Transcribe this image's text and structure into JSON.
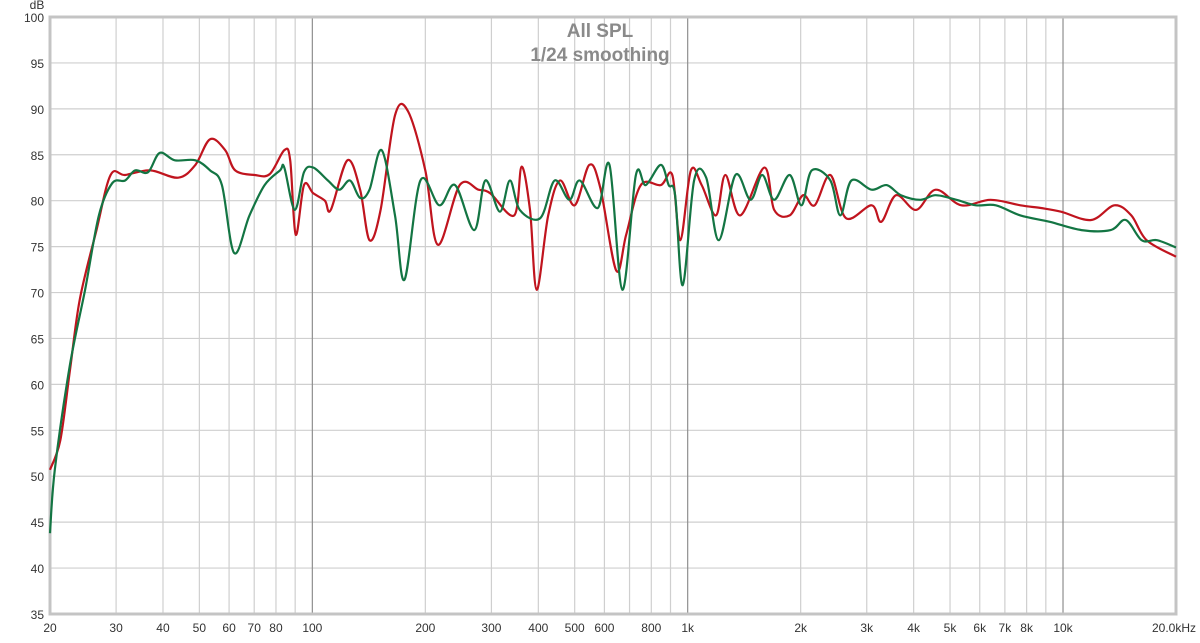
{
  "chart_data": {
    "type": "line",
    "title": "All SPL",
    "subtitle": "1/24 smoothing",
    "ylabel": "dB",
    "xunit": "kHz",
    "xscale": "log",
    "xlim": [
      20,
      20000
    ],
    "ylim": [
      35,
      100
    ],
    "grid": true,
    "yticks": [
      35,
      40,
      45,
      50,
      55,
      60,
      65,
      70,
      75,
      80,
      85,
      90,
      95,
      100
    ],
    "xtick_labels": [
      {
        "v": 20,
        "t": "20"
      },
      {
        "v": 30,
        "t": "30"
      },
      {
        "v": 40,
        "t": "40"
      },
      {
        "v": 50,
        "t": "50"
      },
      {
        "v": 60,
        "t": "60"
      },
      {
        "v": 70,
        "t": "70"
      },
      {
        "v": 80,
        "t": "80"
      },
      {
        "v": 100,
        "t": "100"
      },
      {
        "v": 200,
        "t": "200"
      },
      {
        "v": 300,
        "t": "300"
      },
      {
        "v": 400,
        "t": "400"
      },
      {
        "v": 500,
        "t": "500"
      },
      {
        "v": 600,
        "t": "600"
      },
      {
        "v": 800,
        "t": "800"
      },
      {
        "v": 1000,
        "t": "1k"
      },
      {
        "v": 2000,
        "t": "2k"
      },
      {
        "v": 3000,
        "t": "3k"
      },
      {
        "v": 4000,
        "t": "4k"
      },
      {
        "v": 5000,
        "t": "5k"
      },
      {
        "v": 6000,
        "t": "6k"
      },
      {
        "v": 7000,
        "t": "7k"
      },
      {
        "v": 8000,
        "t": "8k"
      },
      {
        "v": 10000,
        "t": "10k"
      },
      {
        "v": 20000,
        "t": "20.0kHz"
      }
    ],
    "series": [
      {
        "color": "#c0141e",
        "points": [
          [
            20,
            50.7
          ],
          [
            21.3,
            53.9
          ],
          [
            22.6,
            61.5
          ],
          [
            24,
            69.2
          ],
          [
            26.6,
            76.8
          ],
          [
            29,
            82.8
          ],
          [
            31.7,
            82.8
          ],
          [
            37,
            83.3
          ],
          [
            43.9,
            82.5
          ],
          [
            48.8,
            83.9
          ],
          [
            53.4,
            86.7
          ],
          [
            58.6,
            85.5
          ],
          [
            62.3,
            83.3
          ],
          [
            70.2,
            82.8
          ],
          [
            77,
            82.9
          ],
          [
            84.2,
            85.5
          ],
          [
            87.3,
            84.4
          ],
          [
            90.3,
            76.3
          ],
          [
            95,
            81.7
          ],
          [
            100.6,
            80.8
          ],
          [
            108,
            80
          ],
          [
            112,
            79
          ],
          [
            124,
            84.4
          ],
          [
            134,
            81.2
          ],
          [
            142,
            75.7
          ],
          [
            152,
            79
          ],
          [
            166,
            89.3
          ],
          [
            180,
            89.7
          ],
          [
            200,
            83.3
          ],
          [
            216,
            75.2
          ],
          [
            247,
            81.7
          ],
          [
            277,
            81.2
          ],
          [
            298,
            80.8
          ],
          [
            345,
            78.4
          ],
          [
            361,
            83.7
          ],
          [
            380,
            79
          ],
          [
            396,
            70.3
          ],
          [
            425,
            78.4
          ],
          [
            457,
            82.2
          ],
          [
            500,
            79.5
          ],
          [
            547,
            83.9
          ],
          [
            585,
            81.4
          ],
          [
            645,
            72.4
          ],
          [
            686,
            76.3
          ],
          [
            750,
            81.7
          ],
          [
            848,
            81.7
          ],
          [
            910,
            82.8
          ],
          [
            956,
            75.7
          ],
          [
            1020,
            83.3
          ],
          [
            1090,
            81.7
          ],
          [
            1190,
            78.4
          ],
          [
            1260,
            82.8
          ],
          [
            1380,
            78.4
          ],
          [
            1600,
            83.6
          ],
          [
            1700,
            79
          ],
          [
            1870,
            78.4
          ],
          [
            2030,
            80.6
          ],
          [
            2180,
            79.5
          ],
          [
            2400,
            82.8
          ],
          [
            2640,
            78.1
          ],
          [
            3090,
            79.5
          ],
          [
            3280,
            77.7
          ],
          [
            3590,
            80.6
          ],
          [
            4060,
            79
          ],
          [
            4580,
            81.2
          ],
          [
            5360,
            79.5
          ],
          [
            6410,
            80.1
          ],
          [
            7700,
            79.5
          ],
          [
            8730,
            79.2
          ],
          [
            9880,
            78.8
          ],
          [
            11890,
            77.9
          ],
          [
            13700,
            79.5
          ],
          [
            15200,
            78.4
          ],
          [
            16700,
            75.7
          ],
          [
            20000,
            73.9
          ]
        ]
      },
      {
        "color": "#137543",
        "points": [
          [
            20,
            43.8
          ],
          [
            20.6,
            50.7
          ],
          [
            22.6,
            62.1
          ],
          [
            24.8,
            70.3
          ],
          [
            27,
            78.4
          ],
          [
            29.3,
            81.9
          ],
          [
            31.7,
            82.2
          ],
          [
            33.7,
            83.3
          ],
          [
            36.5,
            83.1
          ],
          [
            39.2,
            85.2
          ],
          [
            43,
            84.4
          ],
          [
            48.8,
            84.4
          ],
          [
            53.4,
            83.3
          ],
          [
            57.4,
            81.7
          ],
          [
            61.9,
            74.3
          ],
          [
            68,
            78.4
          ],
          [
            74.6,
            81.7
          ],
          [
            82,
            83.3
          ],
          [
            84.2,
            83.6
          ],
          [
            89.8,
            79
          ],
          [
            95,
            83.1
          ],
          [
            100.6,
            83.6
          ],
          [
            110,
            82.2
          ],
          [
            118,
            81.2
          ],
          [
            126,
            82.2
          ],
          [
            134,
            80.3
          ],
          [
            142,
            81.2
          ],
          [
            153,
            85.5
          ],
          [
            166,
            78.4
          ],
          [
            176,
            71.4
          ],
          [
            194,
            82.2
          ],
          [
            218,
            79.5
          ],
          [
            240,
            81.7
          ],
          [
            270,
            76.8
          ],
          [
            289,
            82.2
          ],
          [
            316,
            78.8
          ],
          [
            336,
            82.2
          ],
          [
            357,
            79
          ],
          [
            405,
            78.1
          ],
          [
            442,
            82.2
          ],
          [
            484,
            80.1
          ],
          [
            516,
            82.2
          ],
          [
            576,
            79.2
          ],
          [
            619,
            83.9
          ],
          [
            670,
            70.3
          ],
          [
            728,
            82.8
          ],
          [
            773,
            81.7
          ],
          [
            848,
            83.9
          ],
          [
            890,
            81.7
          ],
          [
            926,
            80.6
          ],
          [
            970,
            70.8
          ],
          [
            1040,
            82.2
          ],
          [
            1120,
            82.5
          ],
          [
            1210,
            75.7
          ],
          [
            1340,
            82.8
          ],
          [
            1470,
            80.1
          ],
          [
            1580,
            82.8
          ],
          [
            1700,
            80.1
          ],
          [
            1870,
            82.8
          ],
          [
            2010,
            79.5
          ],
          [
            2140,
            83.3
          ],
          [
            2400,
            82.2
          ],
          [
            2550,
            78.4
          ],
          [
            2730,
            82.2
          ],
          [
            3090,
            81.2
          ],
          [
            3390,
            81.7
          ],
          [
            3700,
            80.6
          ],
          [
            4170,
            80.1
          ],
          [
            4580,
            80.6
          ],
          [
            5200,
            80.1
          ],
          [
            5860,
            79.5
          ],
          [
            6620,
            79.5
          ],
          [
            7700,
            78.4
          ],
          [
            9220,
            77.7
          ],
          [
            11200,
            76.8
          ],
          [
            13400,
            76.8
          ],
          [
            14700,
            77.9
          ],
          [
            16200,
            75.7
          ],
          [
            17800,
            75.7
          ],
          [
            20000,
            74.9
          ]
        ]
      }
    ]
  }
}
